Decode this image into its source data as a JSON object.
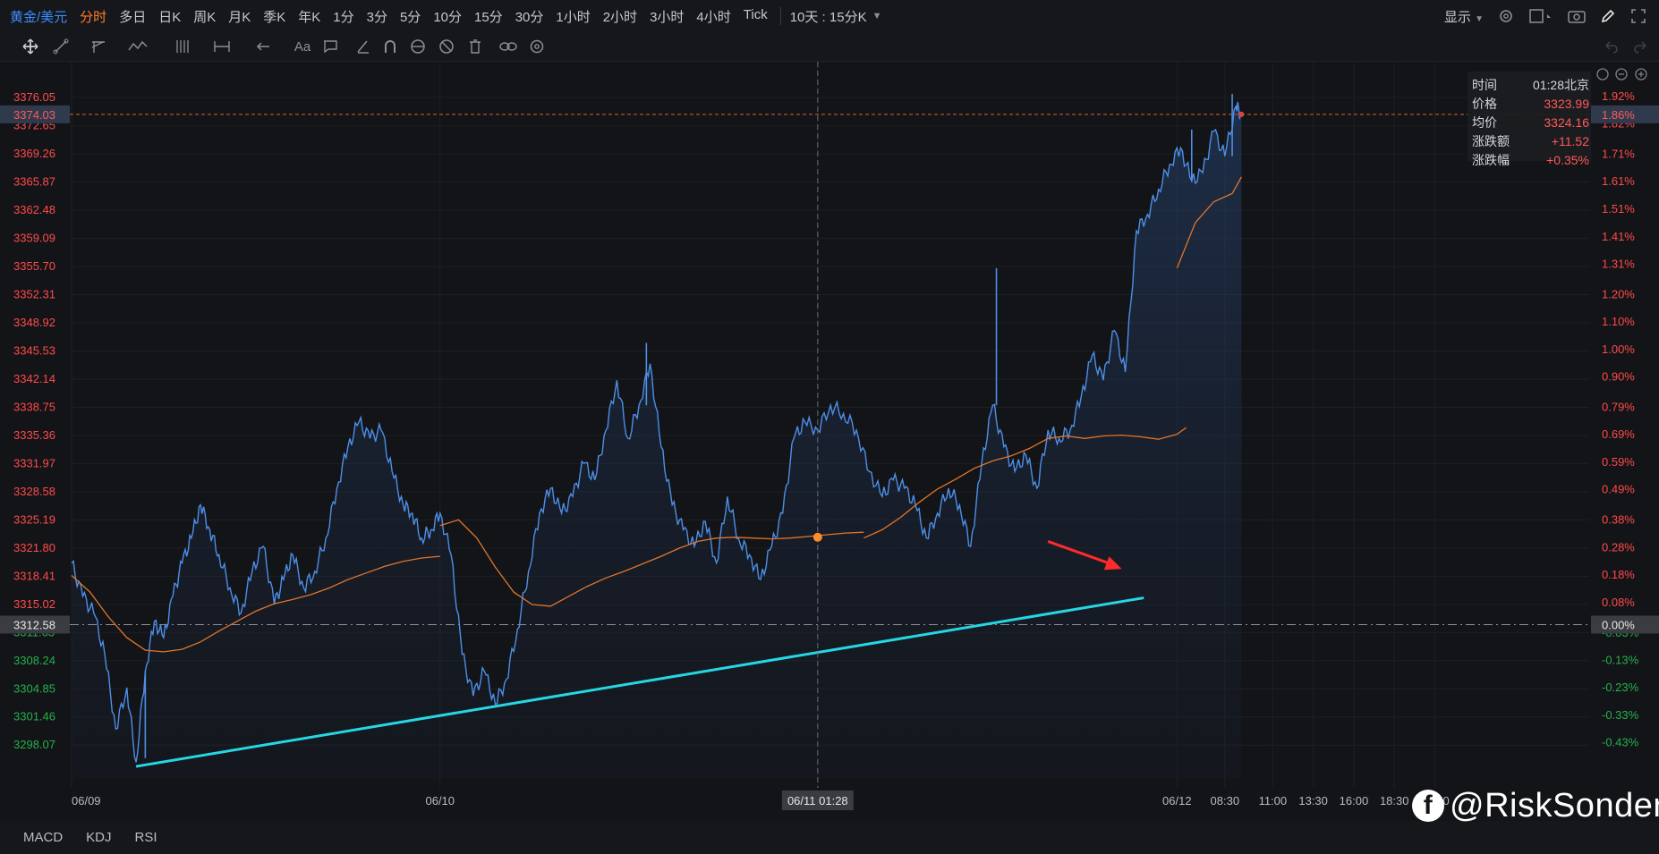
{
  "topbar": {
    "symbol": "黄金/美元",
    "periods": [
      "分时",
      "多日",
      "日K",
      "周K",
      "月K",
      "季K",
      "年K",
      "1分",
      "3分",
      "5分",
      "10分",
      "15分",
      "30分",
      "1小时",
      "2小时",
      "3小时",
      "4小时",
      "Tick"
    ],
    "active_period": "分时",
    "multi_period": "10天 : 15分K",
    "display_label": "显示"
  },
  "icons": {
    "top_right": [
      "chevron-down-icon",
      "settings-icon",
      "layout-icon",
      "camera-icon",
      "pen-icon",
      "fullscreen-icon"
    ],
    "drawing_tools": [
      "crosshair-icon",
      "line-tool-icon",
      "channel-tool-icon",
      "pattern-tool-icon",
      "fib-tool-icon",
      "measure-tool-icon",
      "arrow-tool-icon",
      "text-tool-icon",
      "note-tool-icon",
      "brush-icon",
      "magnet-icon",
      "eye-icon",
      "hide-icon",
      "trash-icon",
      "link-icon",
      "gear-icon"
    ]
  },
  "bottombar": {
    "indicators": [
      "MACD",
      "KDJ",
      "RSI"
    ]
  },
  "chart_data": {
    "type": "line",
    "title": "",
    "prev_close": 3312.58,
    "current_price_label": "3374.03",
    "current_pct_label": "1.86%",
    "crosshair_time_label": "06/11 01:28",
    "ylim": [
      3294.0,
      3378.0
    ],
    "y_ticks_left": [
      "3376.05",
      "3372.65",
      "3369.26",
      "3365.87",
      "3362.48",
      "3359.09",
      "3355.70",
      "3352.31",
      "3348.92",
      "3345.53",
      "3342.14",
      "3338.75",
      "3335.36",
      "3331.97",
      "3328.58",
      "3325.19",
      "3321.80",
      "3318.41",
      "3315.02",
      "3311.63",
      "3308.24",
      "3304.85",
      "3301.46",
      "3298.07"
    ],
    "y_ticks_right": [
      "1.92%",
      "1.82%",
      "1.71%",
      "1.61%",
      "1.51%",
      "1.41%",
      "1.31%",
      "1.20%",
      "1.10%",
      "1.00%",
      "0.90%",
      "0.79%",
      "0.69%",
      "0.59%",
      "0.49%",
      "0.38%",
      "0.28%",
      "0.18%",
      "0.08%",
      "0.00%",
      "-0.03%",
      "-0.13%",
      "-0.23%",
      "-0.33%",
      "-0.43%"
    ],
    "x_labels": [
      "06/09",
      "06/10",
      "06/11",
      "06/12",
      "08:30",
      "11:00",
      "13:30",
      "16:00",
      "18:30",
      "21:00"
    ],
    "x_label_pos": [
      0,
      20,
      40.5,
      60,
      62.6,
      65.2,
      67.4,
      69.6,
      71.8,
      74.0
    ],
    "x_max": 80,
    "x_now": 63.5,
    "price_series": {
      "x": [
        0,
        0.6,
        1.2,
        1.8,
        2.4,
        3.0,
        3.5,
        4.0,
        4.5,
        5.0,
        5.5,
        6.0,
        6.5,
        7.0,
        7.5,
        8.0,
        8.6,
        9.2,
        9.8,
        10.4,
        11.0,
        11.5,
        12.0,
        12.6,
        13.2,
        13.8,
        14.4,
        15.0,
        15.6,
        16.2,
        16.8,
        17.4,
        18.0,
        18.5,
        19.0,
        19.5,
        20.0,
        20.6,
        21.2,
        21.8,
        22.4,
        23.0,
        23.6,
        24.2,
        24.8,
        25.4,
        26.0,
        26.6,
        27.2,
        27.8,
        28.4,
        29.0,
        29.6,
        30.2,
        30.8,
        31.4,
        32.0,
        32.6,
        33.2,
        33.8,
        34.4,
        35.0,
        35.6,
        36.2,
        36.8,
        37.4,
        38.0,
        38.6,
        39.2,
        39.8,
        40.5,
        41.2,
        41.9,
        42.6,
        43.3,
        44.0,
        44.6,
        45.2,
        45.8,
        46.4,
        47.0,
        47.6,
        48.2,
        48.8,
        49.4,
        50.0,
        50.6,
        51.2,
        51.8,
        52.4,
        53.0,
        53.6,
        54.2,
        54.8,
        55.4,
        56.0,
        56.6,
        57.2,
        57.8,
        58.4,
        59.0,
        59.6,
        60.2,
        60.8,
        61.4,
        62.0,
        62.6,
        63.2,
        63.5
      ],
      "y": [
        3320,
        3316,
        3314,
        3309,
        3300,
        3305,
        3296,
        3307,
        3313,
        3311,
        3316,
        3320,
        3323,
        3327,
        3324,
        3321,
        3317,
        3314,
        3319,
        3322,
        3315,
        3318,
        3321,
        3317,
        3319,
        3323,
        3329,
        3334,
        3337,
        3335,
        3336,
        3331,
        3327,
        3326,
        3323,
        3324,
        3326,
        3321,
        3309,
        3304,
        3307,
        3303,
        3306,
        3312,
        3319,
        3326,
        3329,
        3326,
        3328,
        3332,
        3330,
        3336,
        3342,
        3335,
        3339,
        3344,
        3334,
        3327,
        3324,
        3322,
        3325,
        3320,
        3328,
        3323,
        3321,
        3318,
        3322,
        3326,
        3335,
        3337,
        3336,
        3339,
        3338,
        3336,
        3331,
        3328,
        3330,
        3329,
        3327,
        3323,
        3326,
        3329,
        3327,
        3322,
        3332,
        3339,
        3334,
        3331,
        3333,
        3329,
        3336,
        3335,
        3336,
        3340,
        3345,
        3342,
        3348,
        3343,
        3360,
        3362,
        3365,
        3368,
        3370,
        3366,
        3367,
        3372,
        3369,
        3375,
        3374.03
      ],
      "color": "#4d8fe8"
    },
    "spikes": [
      {
        "x": 4.0,
        "y": 3296.5
      },
      {
        "x": 31.2,
        "y": 3346.5
      },
      {
        "x": 50.2,
        "y": 3355.5
      },
      {
        "x": 60.8,
        "y": 3372.2
      },
      {
        "x": 63.0,
        "y": 3376.5
      }
    ],
    "avg_series_segments": [
      {
        "x": [
          0,
          1,
          2,
          3,
          4,
          5,
          6,
          7,
          8,
          9,
          10,
          11,
          12,
          13,
          14,
          15,
          16,
          17,
          18,
          19,
          20
        ],
        "y": [
          3318.5,
          3316.5,
          3313.5,
          3311.0,
          3309.5,
          3309.3,
          3309.6,
          3310.5,
          3311.8,
          3313.0,
          3314.2,
          3315.1,
          3315.6,
          3316.2,
          3317.0,
          3318.0,
          3318.8,
          3319.6,
          3320.2,
          3320.6,
          3320.8
        ]
      },
      {
        "x": [
          20,
          21,
          22,
          23,
          24,
          25,
          26,
          27,
          28,
          29,
          30,
          31,
          32,
          33,
          34,
          35,
          36,
          37,
          38,
          39,
          40,
          41,
          42,
          43
        ],
        "y": [
          3324.5,
          3325.2,
          3323.0,
          3319.5,
          3316.5,
          3315.0,
          3314.8,
          3316.0,
          3317.2,
          3318.2,
          3319.0,
          3319.9,
          3320.8,
          3321.8,
          3322.6,
          3323.0,
          3323.1,
          3323.0,
          3322.9,
          3323.0,
          3323.2,
          3323.4,
          3323.6,
          3323.7
        ]
      },
      {
        "x": [
          43,
          44,
          45,
          46,
          47,
          48,
          49,
          50,
          51,
          52,
          53,
          54,
          55,
          56,
          57,
          58,
          59,
          60,
          60.5
        ],
        "y": [
          3323.0,
          3324.0,
          3325.5,
          3327.3,
          3328.9,
          3330.1,
          3331.4,
          3332.3,
          3332.9,
          3333.8,
          3335.0,
          3335.3,
          3335.0,
          3335.3,
          3335.4,
          3335.2,
          3334.9,
          3335.5,
          3336.3
        ]
      },
      {
        "x": [
          60,
          61,
          62,
          63,
          63.5
        ],
        "y": [
          3355.5,
          3361.0,
          3363.5,
          3364.5,
          3366.5
        ]
      }
    ],
    "avg_color": "#e0752b",
    "trendline": {
      "x": [
        3.5,
        58.2
      ],
      "y": [
        3295.5,
        3315.8
      ],
      "color": "#26d7e3"
    },
    "arrow": {
      "from": [
        53.0,
        3322.6
      ],
      "to": [
        57.0,
        3319.3
      ],
      "color": "#ff2a2a"
    },
    "crosshair": {
      "x": 40.5,
      "y": 3323.1
    },
    "tooltip": {
      "rows": [
        {
          "label": "时间",
          "value": "01:28北京"
        },
        {
          "label": "价格",
          "value": "3323.99"
        },
        {
          "label": "均价",
          "value": "3324.16"
        },
        {
          "label": "涨跌额",
          "value": "+11.52"
        },
        {
          "label": "涨跌幅",
          "value": "+0.35%"
        }
      ]
    },
    "up_color": "#ff4a4a",
    "down_color": "#23b14d"
  },
  "watermark": {
    "text": "@RiskSonder",
    "logo": "f"
  }
}
